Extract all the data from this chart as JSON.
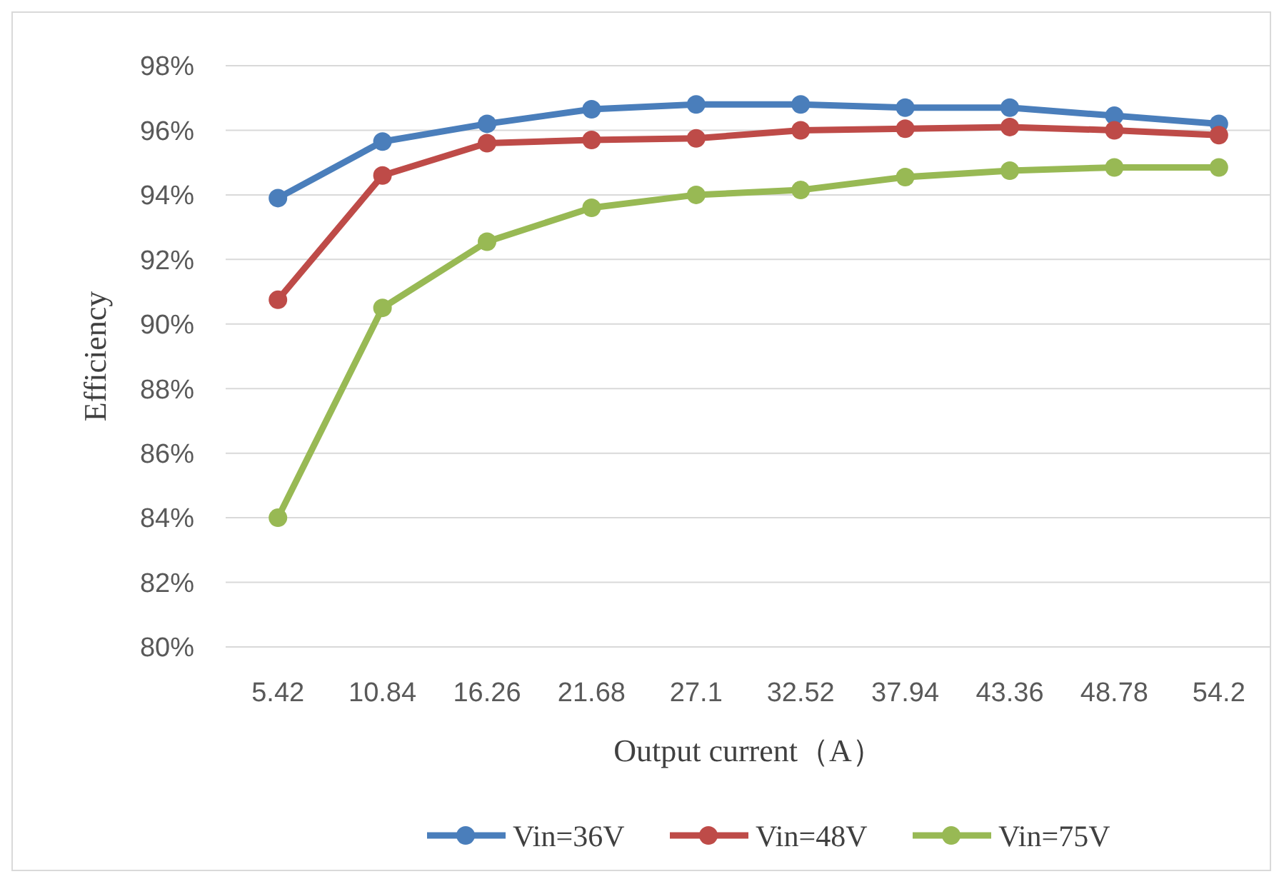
{
  "chart_data": {
    "type": "line",
    "xlabel": "Output current（A）",
    "ylabel": "Efficiency",
    "categories": [
      "5.42",
      "10.84",
      "16.26",
      "21.68",
      "27.1",
      "32.52",
      "37.94",
      "43.36",
      "48.78",
      "54.2"
    ],
    "series": [
      {
        "name": "Vin=36V",
        "color": "#4a7ebb",
        "values": [
          93.9,
          95.65,
          96.2,
          96.65,
          96.8,
          96.8,
          96.7,
          96.7,
          96.45,
          96.2
        ]
      },
      {
        "name": "Vin=48V",
        "color": "#be4b48",
        "values": [
          90.75,
          94.6,
          95.6,
          95.7,
          95.75,
          96.0,
          96.05,
          96.1,
          96.0,
          95.85
        ]
      },
      {
        "name": "Vin=75V",
        "color": "#98b954",
        "values": [
          84.0,
          90.5,
          92.55,
          93.6,
          94.0,
          94.15,
          94.55,
          94.75,
          94.85,
          94.85
        ]
      }
    ],
    "ylim": [
      80,
      98
    ],
    "yticks": [
      {
        "value": 80,
        "label": "80%"
      },
      {
        "value": 82,
        "label": "82%"
      },
      {
        "value": 84,
        "label": "84%"
      },
      {
        "value": 86,
        "label": "86%"
      },
      {
        "value": 88,
        "label": "88%"
      },
      {
        "value": 90,
        "label": "90%"
      },
      {
        "value": 92,
        "label": "92%"
      },
      {
        "value": 94,
        "label": "94%"
      },
      {
        "value": 96,
        "label": "96%"
      },
      {
        "value": 98,
        "label": "98%"
      }
    ],
    "grid": "y",
    "legend": "bottom",
    "marker": "circle",
    "line_style": "solid"
  }
}
